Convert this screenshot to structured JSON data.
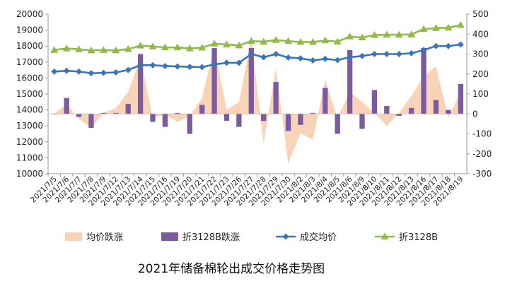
{
  "chart_data": {
    "type": "line",
    "title": "2021年储备棉轮出成交价格走势图",
    "categories": [
      "2021/7/5",
      "2021/7/6",
      "2021/7/7",
      "2021/7/8",
      "2021/7/9",
      "2021/7/12",
      "2021/7/13",
      "2021/7/14",
      "2021/7/15",
      "2021/7/16",
      "2021/7/19",
      "2021/7/20",
      "2021/7/21",
      "2021/7/22",
      "2021/7/23",
      "2021/7/26",
      "2021/7/27",
      "2021/7/28",
      "2021/7/29",
      "2021/7/30",
      "2021/8/2",
      "2021/8/3",
      "2021/8/4",
      "2021/8/5",
      "2021/8/6",
      "2021/8/9",
      "2021/8/10",
      "2021/8/11",
      "2021/8/12",
      "2021/8/13",
      "2021/8/16",
      "2021/8/17",
      "2021/8/18",
      "2021/8/19"
    ],
    "y_left": {
      "min": 10000,
      "max": 20000,
      "step": 1000,
      "ticks": [
        "10000",
        "11000",
        "12000",
        "13000",
        "14000",
        "15000",
        "16000",
        "17000",
        "18000",
        "19000",
        "20000"
      ]
    },
    "y_right": {
      "min": -300,
      "max": 500,
      "step": 100,
      "ticks": [
        "-300",
        "-200",
        "-100",
        "0",
        "100",
        "200",
        "300",
        "400",
        "500"
      ]
    },
    "series": [
      {
        "name": "均价跌涨",
        "kind": "area",
        "axis": "right",
        "color": "#f9d3b8",
        "values": [
          0,
          50,
          -25,
          -70,
          5,
          30,
          110,
          280,
          -20,
          -5,
          -40,
          -10,
          80,
          340,
          20,
          60,
          380,
          -150,
          230,
          -250,
          -95,
          -130,
          170,
          -20,
          110,
          60,
          5,
          -60,
          5,
          90,
          190,
          240,
          -20,
          110
        ]
      },
      {
        "name": "折3128B跌涨",
        "kind": "bar",
        "axis": "right",
        "color": "#7a5ba0",
        "values": [
          0,
          80,
          -15,
          -70,
          5,
          5,
          50,
          300,
          -40,
          -65,
          5,
          -100,
          45,
          330,
          -35,
          -65,
          330,
          -35,
          160,
          -85,
          -55,
          5,
          130,
          -100,
          320,
          -75,
          120,
          40,
          -10,
          30,
          330,
          70,
          20,
          150
        ]
      },
      {
        "name": "成交均价",
        "kind": "line",
        "axis": "left",
        "color": "#3b75b7",
        "values": [
          16400,
          16450,
          16400,
          16300,
          16320,
          16350,
          16500,
          16800,
          16800,
          16750,
          16720,
          16700,
          16680,
          16850,
          16950,
          16950,
          17500,
          17300,
          17500,
          17280,
          17230,
          17100,
          17200,
          17120,
          17300,
          17380,
          17500,
          17500,
          17500,
          17550,
          17750,
          18000,
          18000,
          18100
        ]
      },
      {
        "name": "折3128B",
        "kind": "line",
        "axis": "right",
        "color": "#93b94b",
        "values": [
          320,
          328,
          324,
          318,
          320,
          318,
          325,
          342,
          338,
          333,
          333,
          328,
          332,
          352,
          348,
          343,
          365,
          362,
          370,
          365,
          360,
          360,
          368,
          362,
          388,
          383,
          395,
          397,
          397,
          398,
          425,
          430,
          432,
          445
        ]
      }
    ],
    "legend_position": "bottom",
    "grid": false
  }
}
